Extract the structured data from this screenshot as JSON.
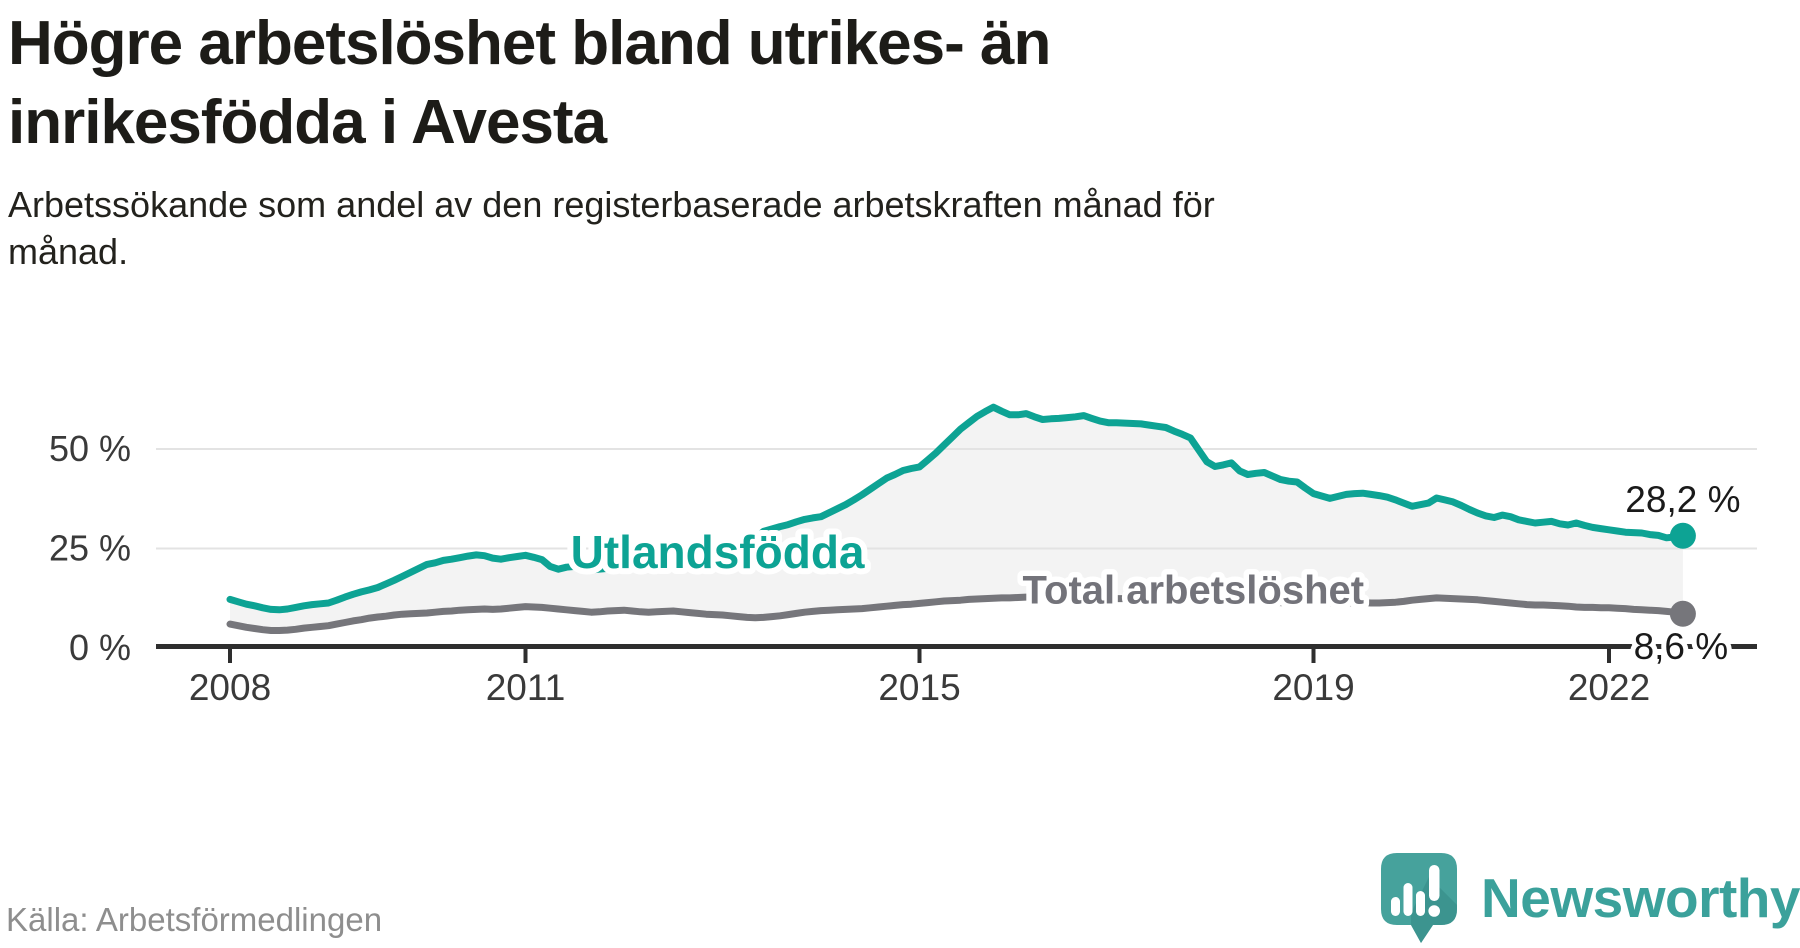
{
  "header": {
    "title": "Högre arbetslöshet bland utrikes- än\ninrikesfödda i Avesta",
    "subtitle": "Arbetssökande som andel av den registerbaserade arbetskraften månad för\nmånad."
  },
  "footer": {
    "source": "Källa: Arbetsförmedlingen",
    "logo_text": "Newsworthy"
  },
  "colors": {
    "accent_teal": "#0da394",
    "series_gray": "#76767b",
    "label_gray": "#73737a",
    "fill_between": "#f3f3f3",
    "gridline": "#e3e3e3",
    "axis": "#2e2e2e",
    "tick_label": "#3a3a3a",
    "value_label": "#1a1a1a",
    "logo_teal": "#46a29c",
    "logo_teal_dark": "#3a8f8b"
  },
  "chart_data": {
    "type": "line",
    "title": "Arbetssökande som andel av den registerbaserade arbetskraften månad för månad",
    "x_start_year": 2008,
    "x_step_months": 1,
    "x_axis_ticks": [
      {
        "year": 2008,
        "label": "2008"
      },
      {
        "year": 2011,
        "label": "2011"
      },
      {
        "year": 2015,
        "label": "2015"
      },
      {
        "year": 2019,
        "label": "2019"
      },
      {
        "year": 2022,
        "label": "2022"
      }
    ],
    "y_ticks": [
      {
        "value": 0,
        "label": "0 %"
      },
      {
        "value": 25,
        "label": "25 %"
      },
      {
        "value": 50,
        "label": "50 %"
      }
    ],
    "ylim": [
      0,
      63
    ],
    "grid": true,
    "legend": "inline-labels",
    "fill_between_series": true,
    "series": [
      {
        "name": "Utlandsfödda",
        "color": "#0da394",
        "end_label": "28,2 %",
        "last_value": 28.2,
        "label_pos": {
          "year": 2012.95,
          "value": 24.1
        },
        "values": [
          12.2,
          11.6,
          11.0,
          10.6,
          10.1,
          9.7,
          9.6,
          9.8,
          10.2,
          10.6,
          10.9,
          11.1,
          11.3,
          12.0,
          12.8,
          13.5,
          14.1,
          14.6,
          15.2,
          16.1,
          17.0,
          18.0,
          19.0,
          20.0,
          21.0,
          21.4,
          22.0,
          22.3,
          22.7,
          23.1,
          23.4,
          23.2,
          22.6,
          22.3,
          22.7,
          23.0,
          23.3,
          22.8,
          22.2,
          20.5,
          19.8,
          20.3,
          20.5,
          20.0,
          19.6,
          19.8,
          20.0,
          20.4,
          20.6,
          20.8,
          21.0,
          21.2,
          21.4,
          21.6,
          21.7,
          21.9,
          22.1,
          22.5,
          23.0,
          23.2,
          23.5,
          24.3,
          25.2,
          26.0,
          27.6,
          29.3,
          29.9,
          30.5,
          31.0,
          31.7,
          32.3,
          32.7,
          33.0,
          34.0,
          35.0,
          36.0,
          37.2,
          38.5,
          39.9,
          41.3,
          42.7,
          43.6,
          44.6,
          45.1,
          45.5,
          47.2,
          49.0,
          51.0,
          53.0,
          55.0,
          56.6,
          58.2,
          59.4,
          60.5,
          59.5,
          58.6,
          58.6,
          58.9,
          58.1,
          57.4,
          57.6,
          57.7,
          57.9,
          58.1,
          58.4,
          57.7,
          57.0,
          56.6,
          56.6,
          56.5,
          56.4,
          56.3,
          56.0,
          55.7,
          55.4,
          54.5,
          53.7,
          52.8,
          49.8,
          46.8,
          45.6,
          46.0,
          46.5,
          44.5,
          43.6,
          43.9,
          44.1,
          43.2,
          42.3,
          41.9,
          41.7,
          40.2,
          38.8,
          38.2,
          37.6,
          38.1,
          38.6,
          38.8,
          38.9,
          38.6,
          38.3,
          37.9,
          37.2,
          36.4,
          35.6,
          36.0,
          36.4,
          37.7,
          37.2,
          36.7,
          35.8,
          34.8,
          33.9,
          33.2,
          32.8,
          33.4,
          33.0,
          32.2,
          31.8,
          31.4,
          31.6,
          31.8,
          31.2,
          30.9,
          31.4,
          30.8,
          30.3,
          30.0,
          29.7,
          29.4,
          29.1,
          29.0,
          28.9,
          28.5,
          28.3,
          27.7,
          27.9,
          28.2
        ]
      },
      {
        "name": "Total arbetslöshet",
        "color": "#76767b",
        "end_label": "8,6 %",
        "last_value": 8.6,
        "label_pos": {
          "year": 2017.78,
          "value": 14.7
        },
        "values": [
          6.0,
          5.6,
          5.2,
          4.9,
          4.6,
          4.4,
          4.4,
          4.5,
          4.7,
          5.0,
          5.2,
          5.4,
          5.6,
          6.0,
          6.4,
          6.8,
          7.1,
          7.5,
          7.8,
          8.0,
          8.3,
          8.5,
          8.6,
          8.7,
          8.8,
          9.0,
          9.2,
          9.3,
          9.5,
          9.6,
          9.7,
          9.8,
          9.7,
          9.8,
          10.0,
          10.2,
          10.4,
          10.3,
          10.2,
          10.0,
          9.8,
          9.6,
          9.4,
          9.2,
          9.0,
          9.1,
          9.3,
          9.4,
          9.5,
          9.3,
          9.1,
          9.0,
          9.1,
          9.2,
          9.3,
          9.1,
          8.9,
          8.7,
          8.5,
          8.4,
          8.3,
          8.1,
          7.9,
          7.7,
          7.6,
          7.7,
          7.9,
          8.1,
          8.4,
          8.7,
          9.0,
          9.2,
          9.4,
          9.5,
          9.6,
          9.7,
          9.8,
          9.9,
          10.1,
          10.3,
          10.5,
          10.7,
          10.9,
          11.0,
          11.2,
          11.4,
          11.6,
          11.8,
          11.9,
          12.0,
          12.2,
          12.3,
          12.4,
          12.5,
          12.6,
          12.6,
          12.7,
          12.8,
          12.9,
          12.8,
          12.8,
          12.7,
          12.7,
          12.6,
          12.6,
          12.5,
          12.5,
          12.4,
          12.4,
          12.4,
          12.3,
          12.3,
          12.2,
          12.2,
          12.1,
          12.1,
          12.0,
          12.0,
          11.9,
          11.9,
          11.8,
          11.8,
          11.7,
          11.7,
          11.6,
          11.5,
          11.5,
          11.4,
          11.4,
          11.3,
          11.3,
          11.3,
          11.3,
          11.2,
          11.2,
          11.3,
          11.3,
          11.4,
          11.4,
          11.3,
          11.3,
          11.4,
          11.5,
          11.7,
          12.0,
          12.2,
          12.4,
          12.6,
          12.5,
          12.4,
          12.3,
          12.2,
          12.1,
          11.9,
          11.7,
          11.5,
          11.3,
          11.1,
          10.9,
          10.8,
          10.8,
          10.7,
          10.6,
          10.5,
          10.3,
          10.2,
          10.2,
          10.1,
          10.1,
          10.0,
          9.9,
          9.7,
          9.6,
          9.5,
          9.4,
          9.2,
          9.0,
          8.6
        ]
      }
    ]
  }
}
